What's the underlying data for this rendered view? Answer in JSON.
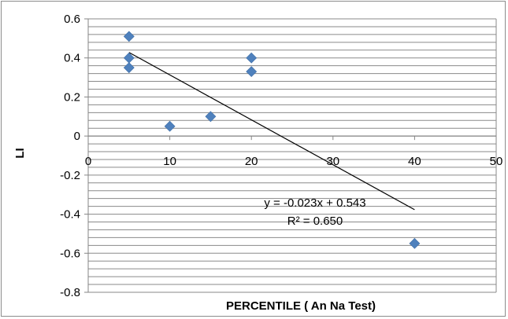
{
  "chart_data": {
    "type": "scatter",
    "title": "",
    "xlabel": "PERCENTILE ( An Na Test)",
    "ylabel": "LI",
    "xlim": [
      0,
      50
    ],
    "ylim": [
      -0.8,
      0.6
    ],
    "x_ticks": [
      0,
      10,
      20,
      30,
      40,
      50
    ],
    "y_ticks": [
      -0.8,
      -0.6,
      -0.4,
      -0.2,
      0,
      0.2,
      0.4,
      0.6
    ],
    "y_tick_labels": [
      "-0.8",
      "-0.6",
      "-0.4",
      "-0.2",
      "0",
      "0.2",
      "0.4",
      "0.6"
    ],
    "grid": "horizontal",
    "legend": "none",
    "series": [
      {
        "x": [
          5,
          5,
          5,
          10,
          15,
          20,
          20,
          40
        ],
        "y": [
          0.51,
          0.4,
          0.35,
          0.05,
          0.1,
          0.4,
          0.33,
          -0.55
        ],
        "marker": "diamond",
        "color": "#4f81bd"
      }
    ],
    "trendline": {
      "type": "linear",
      "slope": -0.023,
      "intercept": 0.543,
      "x_range": [
        5,
        40
      ],
      "color": "#000000",
      "equation": "y = -0.023x + 0.543",
      "r_squared": "R² = 0.650"
    }
  }
}
